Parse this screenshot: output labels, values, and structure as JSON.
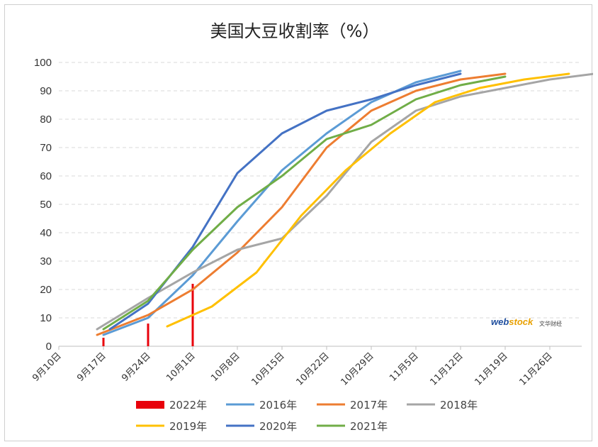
{
  "chart_data": {
    "type": "line",
    "title": "美国大豆收割率（%）",
    "ylim": [
      0,
      100
    ],
    "y_ticks": [
      0,
      10,
      20,
      30,
      40,
      50,
      60,
      70,
      80,
      90,
      100
    ],
    "x_ticks": [
      "9月10日",
      "9月17日",
      "9月24日",
      "10月1日",
      "10月8日",
      "10月15日",
      "10月22日",
      "10月29日",
      "11月5日",
      "11月12日",
      "11月19日",
      "11月26日"
    ],
    "grid": "horizontal dashed",
    "legend_position": "bottom",
    "series": [
      {
        "name": "2022年",
        "kind": "bar",
        "color": "#e8000b",
        "points": [
          [
            7,
            3
          ],
          [
            14,
            8
          ],
          [
            21,
            22
          ]
        ]
      },
      {
        "name": "2016年",
        "color": "#5b9bd5",
        "points": [
          [
            7,
            4
          ],
          [
            14,
            10
          ],
          [
            21,
            25
          ],
          [
            28,
            44
          ],
          [
            35,
            62
          ],
          [
            42,
            75
          ],
          [
            49,
            86
          ],
          [
            56,
            93
          ],
          [
            63,
            97
          ]
        ]
      },
      {
        "name": "2017年",
        "color": "#ed7d31",
        "points": [
          [
            6,
            4
          ],
          [
            14,
            11
          ],
          [
            21,
            20
          ],
          [
            28,
            33
          ],
          [
            35,
            49
          ],
          [
            42,
            70
          ],
          [
            49,
            83
          ],
          [
            56,
            90
          ],
          [
            63,
            94
          ],
          [
            70,
            96
          ]
        ]
      },
      {
        "name": "2018年",
        "color": "#a5a5a5",
        "points": [
          [
            6,
            6
          ],
          [
            14,
            17
          ],
          [
            21,
            26
          ],
          [
            28,
            34
          ],
          [
            35,
            38
          ],
          [
            42,
            53
          ],
          [
            49,
            72
          ],
          [
            56,
            83
          ],
          [
            63,
            88
          ],
          [
            70,
            91
          ],
          [
            77,
            94
          ],
          [
            84,
            96
          ]
        ]
      },
      {
        "name": "2019年",
        "color": "#ffc000",
        "points": [
          [
            17,
            7
          ],
          [
            24,
            14
          ],
          [
            31,
            26
          ],
          [
            38,
            46
          ],
          [
            45,
            62
          ],
          [
            52,
            75
          ],
          [
            59,
            86
          ],
          [
            66,
            91
          ],
          [
            73,
            94
          ],
          [
            80,
            96
          ]
        ]
      },
      {
        "name": "2020年",
        "color": "#4472c4",
        "points": [
          [
            8,
            6
          ],
          [
            14,
            15
          ],
          [
            21,
            35
          ],
          [
            28,
            61
          ],
          [
            35,
            75
          ],
          [
            42,
            83
          ],
          [
            49,
            87
          ],
          [
            56,
            92
          ],
          [
            63,
            96
          ]
        ]
      },
      {
        "name": "2021年",
        "color": "#70ad47",
        "points": [
          [
            7,
            6
          ],
          [
            14,
            16
          ],
          [
            21,
            34
          ],
          [
            28,
            49
          ],
          [
            35,
            60
          ],
          [
            42,
            73
          ],
          [
            49,
            78
          ],
          [
            56,
            87
          ],
          [
            63,
            92
          ],
          [
            70,
            95
          ]
        ]
      }
    ]
  },
  "watermark": {
    "main": "webstock",
    "sub": "文华财经"
  }
}
